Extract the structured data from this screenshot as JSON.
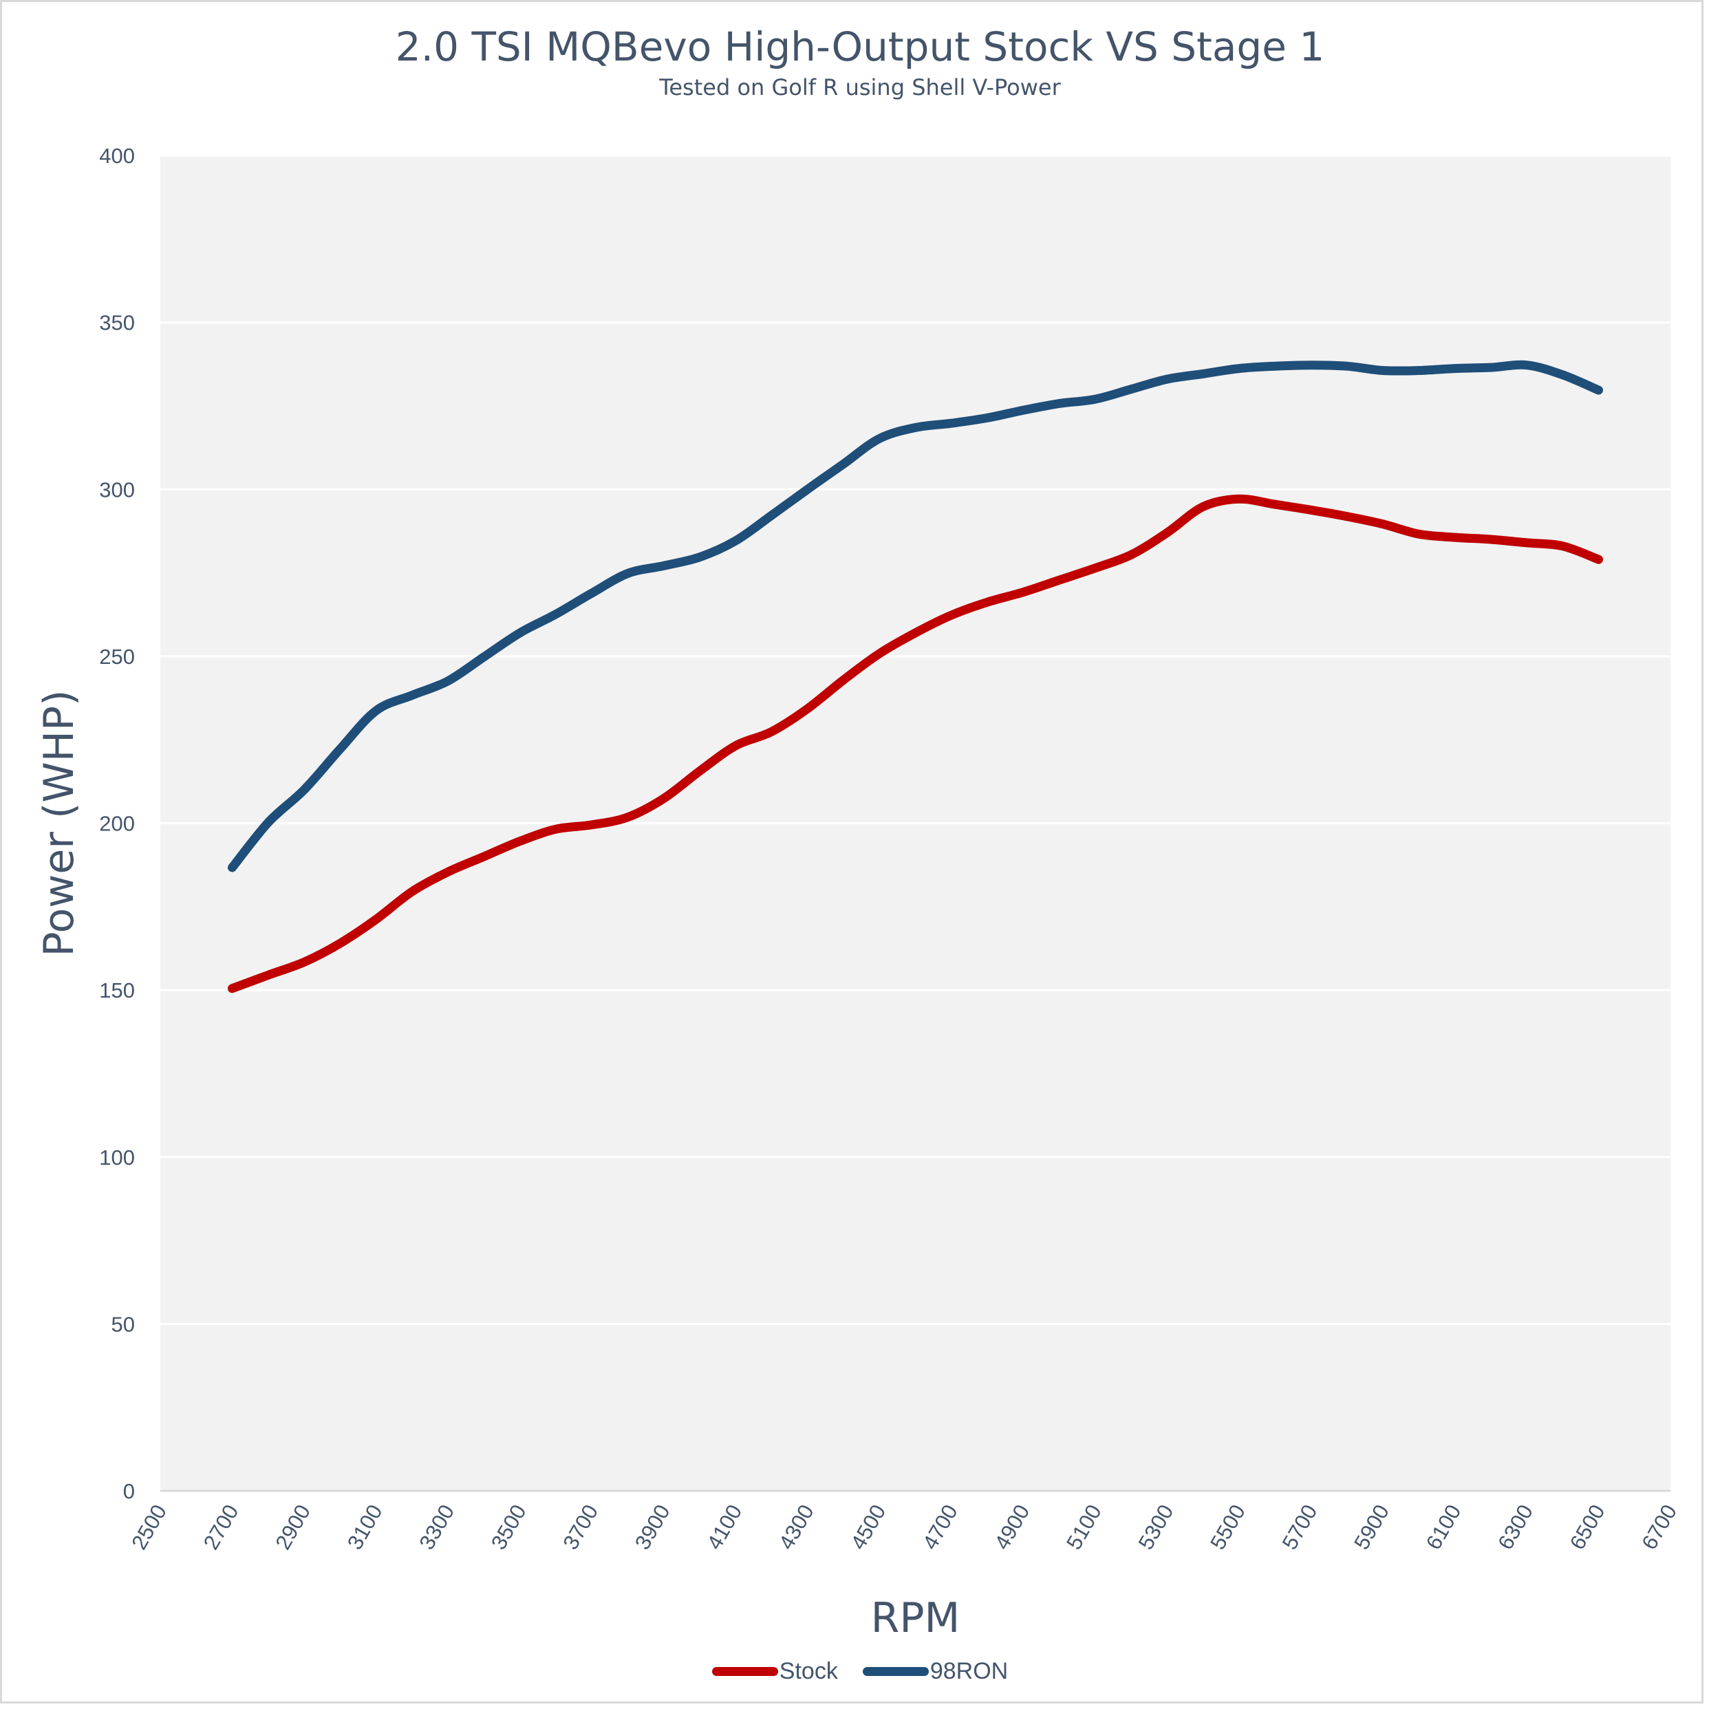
{
  "chart_data": {
    "type": "line",
    "title": "2.0 TSI MQBevo High-Output Stock VS Stage 1",
    "subtitle": "Tested on Golf R using Shell V-Power",
    "xlabel": "RPM",
    "ylabel": "Power (WHP)",
    "xlim": [
      2500,
      6700
    ],
    "ylim": [
      0,
      400
    ],
    "x_ticks": [
      "2500",
      "2700",
      "2900",
      "3100",
      "3300",
      "3500",
      "3700",
      "3900",
      "4100",
      "4300",
      "4500",
      "4700",
      "4900",
      "5100",
      "5300",
      "5500",
      "5700",
      "5900",
      "6100",
      "6300",
      "6500",
      "6700"
    ],
    "y_ticks": [
      "0",
      "50",
      "100",
      "150",
      "200",
      "250",
      "300",
      "350",
      "400"
    ],
    "grid": "horizontal",
    "legend_position": "bottom",
    "x": [
      2700,
      2800,
      2900,
      3000,
      3100,
      3200,
      3300,
      3400,
      3500,
      3600,
      3700,
      3800,
      3900,
      4000,
      4100,
      4200,
      4300,
      4400,
      4500,
      4600,
      4700,
      4800,
      4900,
      5000,
      5100,
      5200,
      5300,
      5400,
      5500,
      5600,
      5700,
      5800,
      5900,
      6000,
      6100,
      6200,
      6300,
      6400,
      6500
    ],
    "series": [
      {
        "name": "Stock",
        "color": "#C00000",
        "values": [
          150.5,
          154.5,
          158.4,
          164,
          171.2,
          179.5,
          185.4,
          190,
          194.6,
          198.2,
          199.5,
          201.8,
          207.4,
          215.6,
          223.2,
          227.4,
          234.3,
          242.9,
          250.8,
          257,
          262.3,
          266.2,
          269.2,
          272.8,
          276.4,
          280.4,
          287,
          294.8,
          297.1,
          295.5,
          293.8,
          291.9,
          289.6,
          286.6,
          285.6,
          285,
          284,
          283,
          279
        ]
      },
      {
        "name": "98RON",
        "color": "#1F4E79",
        "values": [
          186.7,
          200.2,
          210,
          222.2,
          233.7,
          238.3,
          242.6,
          249.8,
          257,
          262.6,
          268.9,
          274.8,
          277.1,
          279.7,
          284.6,
          292.2,
          300,
          307.6,
          315.2,
          318.5,
          319.8,
          321.4,
          323.7,
          325.7,
          327,
          330,
          333,
          334.6,
          336.2,
          336.9,
          337.2,
          336.9,
          335.6,
          335.6,
          336.2,
          336.5,
          337.2,
          334.3,
          329.7
        ]
      }
    ]
  },
  "colors": {
    "plot_background": "#F2F2F2",
    "gridline": "#FFFFFF",
    "text": "#44546A"
  }
}
